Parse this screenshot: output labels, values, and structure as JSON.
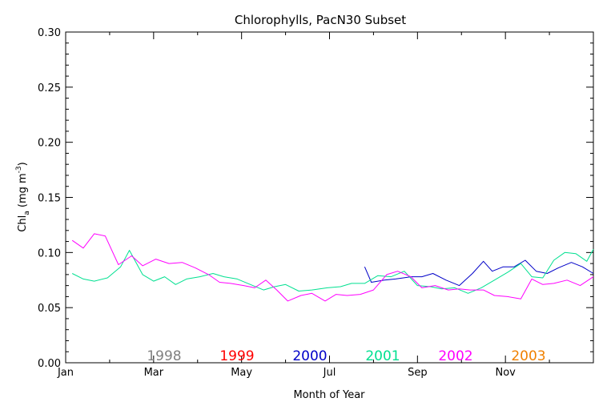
{
  "chart_data": {
    "type": "line",
    "title": "Chlorophylls, PacN30 Subset",
    "xlabel": "Month of Year",
    "ylabel": {
      "prefix": "Chl",
      "subscript": "a",
      "units_open": " (mg m",
      "units_sup": "-3",
      "units_close": ")"
    },
    "xlim": [
      1,
      13
    ],
    "ylim": [
      0,
      0.3
    ],
    "x_ticks": [
      {
        "label": "Jan",
        "value": 1
      },
      {
        "label": "Mar",
        "value": 3
      },
      {
        "label": "May",
        "value": 5
      },
      {
        "label": "Jul",
        "value": 7
      },
      {
        "label": "Sep",
        "value": 9
      },
      {
        "label": "Nov",
        "value": 11
      }
    ],
    "y_ticks": [
      "0.00",
      "0.05",
      "0.10",
      "0.15",
      "0.20",
      "0.25",
      "0.30"
    ],
    "legend_placement": "bottom, inside plot",
    "series": [
      {
        "name": "1998",
        "color": "#808080",
        "points": []
      },
      {
        "name": "1999",
        "color": "#ff0000",
        "points": []
      },
      {
        "name": "2000",
        "color": "#0000c8",
        "points": [
          [
            7.8,
            0.087
          ],
          [
            7.95,
            0.073
          ],
          [
            8.25,
            0.075
          ],
          [
            8.5,
            0.076
          ],
          [
            8.85,
            0.078
          ],
          [
            9.1,
            0.078
          ],
          [
            9.35,
            0.081
          ],
          [
            9.65,
            0.075
          ],
          [
            9.95,
            0.07
          ],
          [
            10.25,
            0.081
          ],
          [
            10.5,
            0.092
          ],
          [
            10.7,
            0.083
          ],
          [
            10.95,
            0.087
          ],
          [
            11.2,
            0.087
          ],
          [
            11.45,
            0.093
          ],
          [
            11.7,
            0.083
          ],
          [
            11.95,
            0.081
          ],
          [
            12.2,
            0.086
          ],
          [
            12.5,
            0.091
          ],
          [
            12.75,
            0.087
          ],
          [
            13.0,
            0.081
          ]
        ]
      },
      {
        "name": "2001",
        "color": "#00e090",
        "points": [
          [
            1.15,
            0.081
          ],
          [
            1.4,
            0.076
          ],
          [
            1.65,
            0.074
          ],
          [
            1.95,
            0.077
          ],
          [
            2.25,
            0.087
          ],
          [
            2.45,
            0.102
          ],
          [
            2.75,
            0.08
          ],
          [
            3.0,
            0.074
          ],
          [
            3.25,
            0.078
          ],
          [
            3.5,
            0.071
          ],
          [
            3.75,
            0.076
          ],
          [
            4.05,
            0.078
          ],
          [
            4.35,
            0.081
          ],
          [
            4.6,
            0.078
          ],
          [
            4.9,
            0.076
          ],
          [
            5.2,
            0.071
          ],
          [
            5.5,
            0.066
          ],
          [
            5.75,
            0.069
          ],
          [
            6.0,
            0.071
          ],
          [
            6.3,
            0.065
          ],
          [
            6.6,
            0.066
          ],
          [
            6.95,
            0.068
          ],
          [
            7.25,
            0.069
          ],
          [
            7.5,
            0.072
          ],
          [
            7.8,
            0.072
          ],
          [
            8.1,
            0.079
          ],
          [
            8.4,
            0.078
          ],
          [
            8.7,
            0.083
          ],
          [
            9.0,
            0.07
          ],
          [
            9.3,
            0.069
          ],
          [
            9.55,
            0.067
          ],
          [
            9.85,
            0.068
          ],
          [
            10.15,
            0.063
          ],
          [
            10.45,
            0.068
          ],
          [
            10.75,
            0.075
          ],
          [
            11.05,
            0.082
          ],
          [
            11.35,
            0.09
          ],
          [
            11.6,
            0.078
          ],
          [
            11.85,
            0.077
          ],
          [
            12.1,
            0.093
          ],
          [
            12.35,
            0.1
          ],
          [
            12.6,
            0.099
          ],
          [
            12.85,
            0.092
          ],
          [
            13.0,
            0.103
          ]
        ]
      },
      {
        "name": "2002",
        "color": "#ff00ff",
        "points": [
          [
            1.15,
            0.111
          ],
          [
            1.4,
            0.104
          ],
          [
            1.65,
            0.117
          ],
          [
            1.9,
            0.115
          ],
          [
            2.2,
            0.089
          ],
          [
            2.5,
            0.097
          ],
          [
            2.75,
            0.088
          ],
          [
            3.05,
            0.094
          ],
          [
            3.35,
            0.09
          ],
          [
            3.65,
            0.091
          ],
          [
            3.95,
            0.086
          ],
          [
            4.25,
            0.08
          ],
          [
            4.5,
            0.073
          ],
          [
            4.75,
            0.072
          ],
          [
            5.05,
            0.07
          ],
          [
            5.3,
            0.068
          ],
          [
            5.55,
            0.075
          ],
          [
            5.8,
            0.066
          ],
          [
            6.05,
            0.056
          ],
          [
            6.35,
            0.061
          ],
          [
            6.6,
            0.063
          ],
          [
            6.9,
            0.056
          ],
          [
            7.15,
            0.062
          ],
          [
            7.4,
            0.061
          ],
          [
            7.7,
            0.062
          ],
          [
            8.0,
            0.066
          ],
          [
            8.3,
            0.08
          ],
          [
            8.55,
            0.083
          ],
          [
            8.85,
            0.078
          ],
          [
            9.1,
            0.068
          ],
          [
            9.4,
            0.07
          ],
          [
            9.7,
            0.066
          ],
          [
            9.95,
            0.067
          ],
          [
            10.2,
            0.066
          ],
          [
            10.5,
            0.066
          ],
          [
            10.75,
            0.061
          ],
          [
            11.05,
            0.06
          ],
          [
            11.35,
            0.058
          ],
          [
            11.6,
            0.076
          ],
          [
            11.85,
            0.071
          ],
          [
            12.1,
            0.072
          ],
          [
            12.4,
            0.075
          ],
          [
            12.7,
            0.07
          ],
          [
            13.0,
            0.078
          ]
        ]
      },
      {
        "name": "2003",
        "color": "#f08000",
        "points": []
      }
    ]
  }
}
